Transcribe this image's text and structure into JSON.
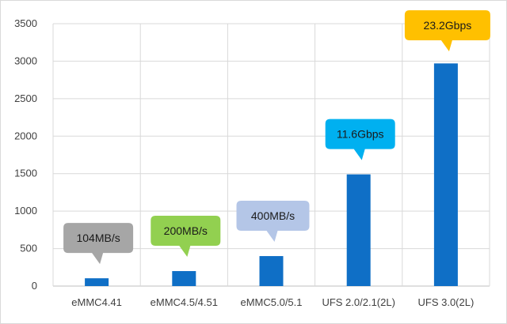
{
  "chart_data": {
    "type": "bar",
    "title": "",
    "xlabel": "",
    "ylabel": "",
    "categories": [
      "eMMC4.41",
      "eMMC4.5/4.51",
      "eMMC5.0/5.1",
      "UFS 2.0/2.1(2L)",
      "UFS 3.0(2L)"
    ],
    "values": [
      104,
      200,
      400,
      1490,
      2970
    ],
    "ylim": [
      0,
      3500
    ],
    "yticks": [
      0,
      500,
      1000,
      1500,
      2000,
      2500,
      3000,
      3500
    ],
    "grid": "vertical-and-horizontal",
    "bar_color": "#0f6fc6",
    "annotations": [
      {
        "category": "eMMC4.41",
        "label": "104MB/s",
        "color": "#a6a6a6"
      },
      {
        "category": "eMMC4.5/4.51",
        "label": "200MB/s",
        "color": "#92d050"
      },
      {
        "category": "eMMC5.0/5.1",
        "label": "400MB/s",
        "color": "#b4c6e7"
      },
      {
        "category": "UFS 2.0/2.1(2L)",
        "label": "11.6Gbps",
        "color": "#00b0f0"
      },
      {
        "category": "UFS 3.0(2L)",
        "label": "23.2Gbps",
        "color": "#ffc000"
      }
    ]
  }
}
